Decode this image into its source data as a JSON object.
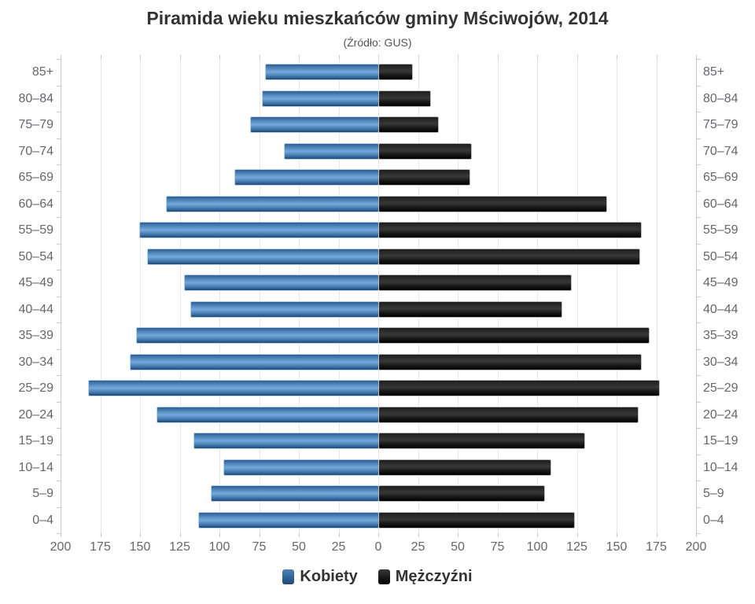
{
  "header": {
    "title": "Piramida wieku mieszkańców gminy Mściwojów, 2014",
    "subtitle": "(Źródło: GUS)"
  },
  "legend": {
    "items": [
      {
        "label": "Kobiety",
        "color_top": "#4d82b8",
        "color_bottom": "#1d4a77"
      },
      {
        "label": "Mężczyźni",
        "color_top": "#383838",
        "color_bottom": "#000000"
      }
    ]
  },
  "chart_data": {
    "type": "bar",
    "variant": "population-pyramid",
    "title": "Piramida wieku mieszkańców gminy Mściwojów, 2014",
    "subtitle": "(Źródło: GUS)",
    "categories": [
      "85+",
      "80–84",
      "75–79",
      "70–74",
      "65–69",
      "60–64",
      "55–59",
      "50–54",
      "45–49",
      "40–44",
      "35–39",
      "30–34",
      "25–29",
      "20–24",
      "15–19",
      "10–14",
      "5–9",
      "0–4"
    ],
    "series": [
      {
        "name": "Kobiety",
        "side": "left",
        "color": "#4d82b8",
        "values": [
          71,
          73,
          80,
          59,
          90,
          133,
          150,
          145,
          122,
          118,
          152,
          156,
          182,
          139,
          116,
          97,
          105,
          113
        ]
      },
      {
        "name": "Mężczyźni",
        "side": "right",
        "color": "#1a1a1a",
        "values": [
          21,
          32,
          37,
          58,
          57,
          143,
          165,
          164,
          121,
          115,
          170,
          165,
          176,
          163,
          129,
          108,
          104,
          123
        ]
      }
    ],
    "x_tick_labels": [
      "200",
      "175",
      "150",
      "125",
      "100",
      "75",
      "50",
      "25",
      "0",
      "25",
      "50",
      "75",
      "100",
      "125",
      "150",
      "175",
      "200"
    ],
    "x_tick_values": [
      -200,
      -175,
      -150,
      -125,
      -100,
      -75,
      -50,
      -25,
      0,
      25,
      50,
      75,
      100,
      125,
      150,
      175,
      200
    ],
    "xlim": [
      -200,
      200
    ],
    "grid": true,
    "legend_position": "bottom"
  }
}
